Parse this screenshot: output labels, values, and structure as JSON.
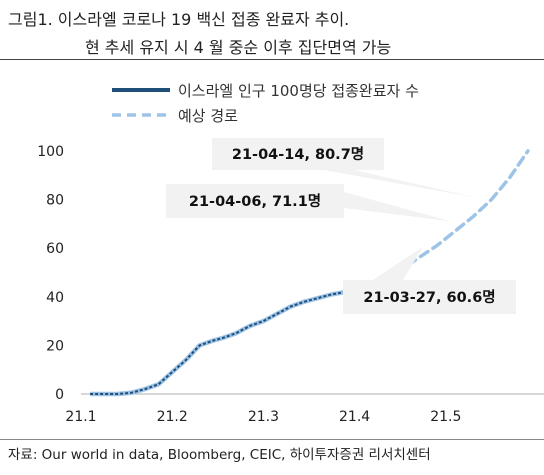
{
  "title": {
    "line1": "그림1.  이스라엘 코로나 19 백신 접종 완료자 추이.",
    "line2": "현 추세 유지 시 4 월 중순 이후 집단면역 가능"
  },
  "source": "자료: Our world in data, Bloomberg, CEIC, 하이투자증권 리서치센터",
  "colors": {
    "actual": "#1f4e79",
    "forecast": "#9dc3e6",
    "callout": "#f2f2f2"
  },
  "chart_data": {
    "type": "line",
    "x_ticks": [
      "21.1",
      "21.2",
      "21.3",
      "21.4",
      "21.5"
    ],
    "y_ticks": [
      "0",
      "20",
      "40",
      "60",
      "80",
      "100"
    ],
    "ylim": [
      0,
      100
    ],
    "xlim": [
      0,
      5.8
    ],
    "grid": false,
    "legend": "top",
    "series": [
      {
        "name": "이스라엘 인구 100명당 접종완료자 수",
        "style": "solid",
        "x": [
          0.1,
          0.4,
          0.55,
          0.7,
          0.85,
          1.0,
          1.15,
          1.3,
          1.45,
          1.55,
          1.7,
          1.85,
          2.0,
          2.15,
          2.3,
          2.45,
          2.6,
          2.75,
          2.9,
          3.05,
          3.2,
          3.3
        ],
        "y": [
          0,
          0,
          0.5,
          2,
          4,
          9,
          14,
          20,
          22,
          23,
          25,
          28,
          30,
          33,
          36,
          38,
          39.5,
          41,
          42,
          44,
          45,
          47
        ]
      },
      {
        "name": "예상 경로",
        "style": "dashed",
        "x": [
          3.3,
          3.5,
          3.7,
          3.9,
          4.1,
          4.3,
          4.5,
          4.7,
          4.9
        ],
        "y": [
          47,
          51,
          56,
          61,
          67,
          73,
          80,
          89,
          100
        ]
      }
    ],
    "annotations": [
      {
        "label": "21-04-14, 80.7명",
        "x": 4.35,
        "y": 80.7
      },
      {
        "label": "21-04-06, 71.1명",
        "x": 4.05,
        "y": 71.1
      },
      {
        "label": "21-03-27, 60.6명",
        "x": 3.75,
        "y": 60.6
      }
    ]
  }
}
